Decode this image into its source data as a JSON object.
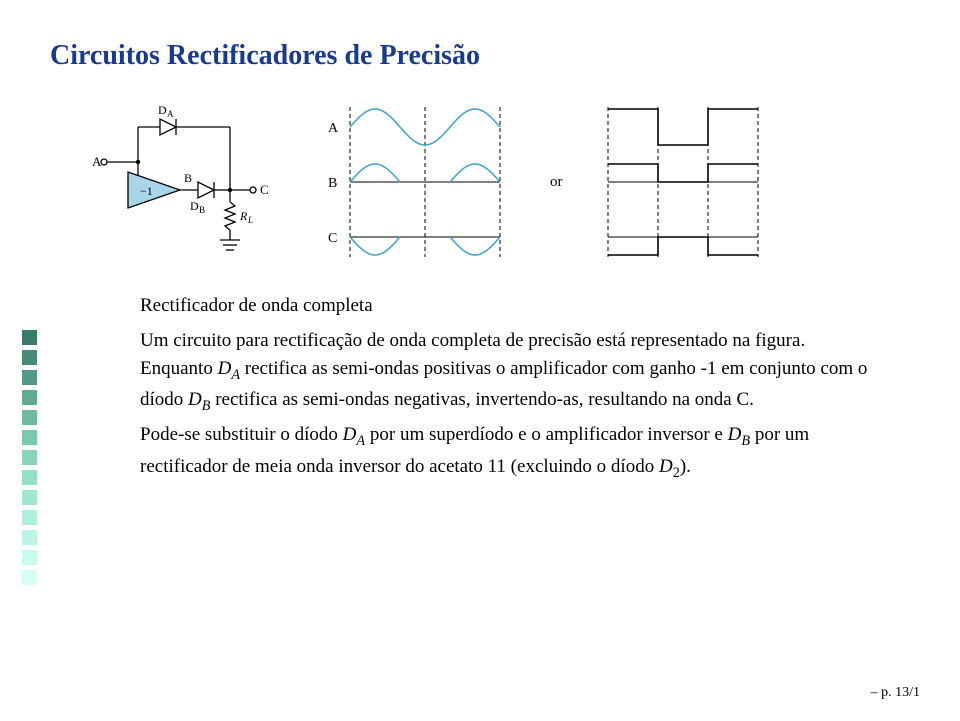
{
  "title": "Circuitos Rectificadores de Precisão",
  "title_color": "#1a3a8a",
  "subtitle": "Rectificador de onda completa",
  "body_parts": {
    "p1a": "Um circuito para rectificação de onda completa de precisão está representado na figura. Enquanto ",
    "p1b": " rectifica as semi-ondas positivas o amplificador com ganho -1 em conjunto com o díodo ",
    "p1c": " rectifica as semi-ondas negativas, invertendo-as, resultando na onda C.",
    "p2a": "Pode-se substituir o díodo ",
    "p2b": " por um superdíodo e o amplificador inversor e ",
    "p2c": " por um rectificador de meia onda inversor do acetato 11 (excluindo o díodo ",
    "p2d": ")."
  },
  "symbols": {
    "DA": {
      "base": "D",
      "sub": "A"
    },
    "DB": {
      "base": "D",
      "sub": "B"
    },
    "D2": {
      "base": "D",
      "sub": "2"
    }
  },
  "page_number": "– p. 13/1",
  "circuit": {
    "labels": {
      "A": "A",
      "B": "B",
      "C": "C",
      "DA": "D",
      "DA_sub": "A",
      "DB": "D",
      "DB_sub": "B",
      "RL": "R",
      "RL_sub": "L",
      "gain": "−1"
    },
    "colors": {
      "wire": "#000000",
      "amp_fill": "#a8d5e8",
      "text": "#000000"
    },
    "line_width": 1.3
  },
  "waves": {
    "labels": {
      "A": "A",
      "B": "B",
      "C": "C",
      "or": "or"
    },
    "colors": {
      "sine": "#4aa5c9",
      "square": "#000000",
      "dash": "#000000",
      "axis": "#000000"
    },
    "amp": 18,
    "dash_pattern": "4 3"
  },
  "side_squares": {
    "count": 13,
    "colors": [
      "#3a7a6a",
      "#478a78",
      "#549a86",
      "#61aa94",
      "#6ebaa2",
      "#7bcab0",
      "#88d4bc",
      "#95dec8",
      "#a2e6d2",
      "#afeedd",
      "#bcf4e6",
      "#c9faef",
      "#d6fff8"
    ]
  }
}
